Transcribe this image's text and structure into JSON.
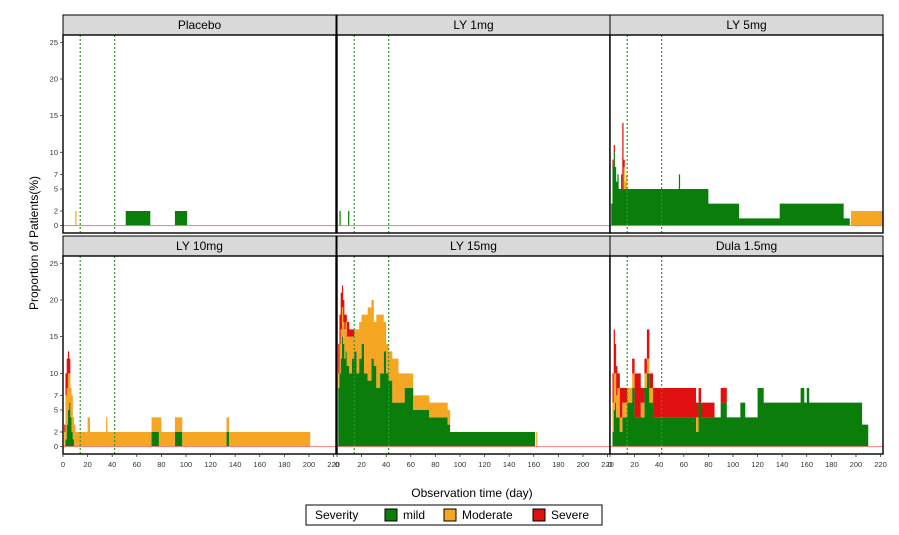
{
  "chart_data": {
    "type": "area",
    "subtype": "stacked step-area small multiples (facets)",
    "xlabel": "Observation time (day)",
    "ylabel": "Proportion of Patients(%)",
    "xlim": [
      0,
      222
    ],
    "ylim": [
      -1,
      26
    ],
    "x_ticks": [
      0,
      20,
      40,
      60,
      80,
      100,
      120,
      140,
      160,
      180,
      200,
      220
    ],
    "x_tick_labels": [
      "0",
      "20",
      "40",
      "60",
      "80",
      "100",
      "120",
      "140",
      "160",
      "180",
      "200",
      "220"
    ],
    "y_ticks": [
      0,
      2,
      5,
      7,
      10,
      15,
      20,
      25
    ],
    "y_tick_labels": [
      "0",
      "2",
      "5",
      "7",
      "10",
      "15",
      "20",
      "25"
    ],
    "reference_lines_x": [
      14,
      42
    ],
    "reference_line_y": 0,
    "layout": {
      "rows": 2,
      "cols": 3
    },
    "legend": {
      "title": "Severity",
      "position": "bottom",
      "items": [
        {
          "key": "mild",
          "label": "mild",
          "color": "#0b7d0b"
        },
        {
          "key": "moderate",
          "label": "Moderate",
          "color": "#f5a623"
        },
        {
          "key": "severe",
          "label": "Severe",
          "color": "#e01010"
        }
      ]
    },
    "colors": {
      "mild": "#0b7d0b",
      "moderate": "#f5a623",
      "severe": "#e01010",
      "strip_bg": "#d9d9d9",
      "ref_vline": "#2e9a2e",
      "ref_hline": "#e88080"
    },
    "panels": [
      {
        "title": "Placebo",
        "x": [
          0,
          9,
          10,
          11,
          12,
          50,
          51,
          70,
          71,
          90,
          91,
          100,
          101,
          222
        ],
        "mild": [
          0,
          0,
          0,
          0,
          0,
          0,
          2,
          2,
          0,
          0,
          2,
          2,
          0,
          0
        ],
        "moderate": [
          0,
          0,
          2,
          0,
          0,
          0,
          0,
          0,
          0,
          0,
          0,
          0,
          0,
          0
        ],
        "severe": [
          0,
          0,
          0,
          0,
          0,
          0,
          0,
          0,
          0,
          0,
          0,
          0,
          0,
          0
        ]
      },
      {
        "title": "LY 1mg",
        "x": [
          0,
          1,
          2,
          3,
          4,
          8,
          9,
          10,
          11,
          222
        ],
        "mild": [
          0,
          0,
          2,
          0,
          0,
          0,
          2,
          0,
          0,
          0
        ],
        "moderate": [
          0,
          0,
          0,
          0,
          0,
          0,
          0,
          0,
          0,
          0
        ],
        "severe": [
          0,
          0,
          0,
          0,
          0,
          0,
          0,
          0,
          0,
          0
        ]
      },
      {
        "title": "LY 5mg",
        "x": [
          0,
          1,
          2,
          3,
          4,
          5,
          6,
          7,
          8,
          9,
          10,
          11,
          12,
          13,
          14,
          15,
          16,
          55,
          56,
          57,
          58,
          80,
          81,
          105,
          106,
          138,
          139,
          190,
          191,
          195,
          196,
          222
        ],
        "mild": [
          0,
          3,
          8,
          10,
          8,
          6,
          7,
          5,
          5,
          7,
          5,
          5,
          5,
          5,
          5,
          5,
          5,
          5,
          7,
          5,
          5,
          3,
          3,
          1,
          1,
          3,
          3,
          1,
          1,
          0,
          0,
          0
        ],
        "moderate": [
          0,
          0,
          0,
          0,
          0,
          0,
          0,
          0,
          0,
          0,
          0,
          3,
          1,
          2,
          0,
          0,
          0,
          0,
          0,
          0,
          0,
          0,
          0,
          0,
          0,
          0,
          0,
          0,
          0,
          0,
          2,
          0
        ],
        "severe": [
          0,
          0,
          1,
          1,
          0,
          0,
          0,
          0,
          0,
          0,
          9,
          1,
          0,
          0,
          0,
          0,
          0,
          0,
          0,
          0,
          0,
          0,
          0,
          0,
          0,
          0,
          0,
          0,
          0,
          0,
          0,
          0
        ]
      },
      {
        "title": "LY 10mg",
        "x": [
          0,
          1,
          2,
          3,
          4,
          5,
          6,
          7,
          8,
          9,
          10,
          14,
          15,
          16,
          17,
          20,
          22,
          26,
          27,
          35,
          36,
          40,
          41,
          65,
          66,
          72,
          73,
          78,
          80,
          81,
          90,
          91,
          97,
          98,
          132,
          133,
          134,
          135,
          136,
          200,
          201,
          222
        ],
        "mild": [
          0,
          0,
          1,
          3,
          5,
          6,
          4,
          2,
          1,
          0,
          0,
          0,
          0,
          0,
          0,
          0,
          0,
          0,
          0,
          0,
          0,
          0,
          0,
          0,
          0,
          2,
          2,
          0,
          0,
          0,
          0,
          2,
          0,
          0,
          0,
          2,
          2,
          0,
          0,
          0,
          0,
          0
        ],
        "moderate": [
          0,
          2,
          6,
          5,
          5,
          4,
          4,
          5,
          3,
          3,
          2,
          2,
          2,
          2,
          2,
          4,
          2,
          2,
          2,
          4,
          2,
          2,
          2,
          2,
          2,
          2,
          2,
          4,
          2,
          2,
          2,
          2,
          2,
          2,
          2,
          2,
          2,
          2,
          2,
          2,
          0,
          0
        ],
        "severe": [
          0,
          1,
          3,
          4,
          3,
          2,
          0,
          0,
          0,
          0,
          0,
          0,
          0,
          0,
          0,
          0,
          0,
          0,
          0,
          0,
          0,
          0,
          0,
          0,
          0,
          0,
          0,
          0,
          0,
          0,
          0,
          0,
          0,
          0,
          0,
          0,
          0,
          0,
          0,
          0,
          0,
          0
        ]
      },
      {
        "title": "LY 15mg",
        "x": [
          0,
          1,
          2,
          3,
          4,
          5,
          6,
          7,
          8,
          10,
          12,
          14,
          16,
          18,
          20,
          22,
          25,
          28,
          30,
          32,
          35,
          38,
          40,
          42,
          45,
          50,
          55,
          60,
          62,
          65,
          70,
          75,
          80,
          85,
          88,
          90,
          92,
          95,
          100,
          160,
          161,
          162,
          163,
          222
        ],
        "mild": [
          0,
          8,
          10,
          12,
          15,
          14,
          12,
          13,
          11,
          10,
          12,
          13,
          10,
          12,
          14,
          10,
          9,
          12,
          11,
          8,
          10,
          13,
          10,
          9,
          6,
          6,
          8,
          8,
          5,
          5,
          5,
          4,
          4,
          4,
          4,
          3,
          2,
          2,
          2,
          2,
          0,
          0,
          0,
          0
        ],
        "moderate": [
          0,
          2,
          4,
          4,
          4,
          3,
          4,
          4,
          4,
          5,
          3,
          3,
          6,
          5,
          4,
          8,
          10,
          8,
          6,
          10,
          8,
          4,
          4,
          4,
          6,
          4,
          2,
          2,
          2,
          2,
          2,
          2,
          2,
          2,
          2,
          2,
          0,
          0,
          0,
          0,
          0,
          2,
          0,
          0
        ],
        "severe": [
          0,
          4,
          4,
          5,
          3,
          3,
          2,
          1,
          2,
          1,
          1,
          0,
          0,
          0,
          0,
          0,
          0,
          0,
          0,
          0,
          0,
          0,
          0,
          0,
          0,
          0,
          0,
          0,
          0,
          0,
          0,
          0,
          0,
          0,
          0,
          0,
          0,
          0,
          0,
          0,
          0,
          0,
          0,
          0
        ]
      },
      {
        "title": "Dula 1.5mg",
        "x": [
          0,
          2,
          3,
          4,
          5,
          6,
          8,
          10,
          14,
          18,
          20,
          25,
          28,
          30,
          32,
          35,
          40,
          45,
          50,
          60,
          70,
          72,
          74,
          80,
          85,
          90,
          95,
          100,
          104,
          106,
          110,
          118,
          120,
          125,
          130,
          140,
          150,
          155,
          158,
          160,
          162,
          165,
          170,
          180,
          190,
          200,
          205,
          210,
          211,
          222
        ],
        "mild": [
          0,
          2,
          5,
          6,
          4,
          4,
          2,
          4,
          6,
          8,
          4,
          4,
          8,
          10,
          6,
          4,
          4,
          4,
          4,
          4,
          2,
          6,
          4,
          4,
          4,
          6,
          4,
          4,
          4,
          6,
          4,
          4,
          8,
          6,
          6,
          6,
          6,
          8,
          6,
          8,
          6,
          6,
          6,
          6,
          6,
          6,
          3,
          0,
          0,
          0
        ],
        "moderate": [
          0,
          4,
          5,
          4,
          3,
          4,
          2,
          2,
          2,
          2,
          0,
          2,
          2,
          2,
          2,
          0,
          0,
          0,
          0,
          0,
          2,
          0,
          0,
          0,
          0,
          0,
          0,
          0,
          0,
          0,
          0,
          0,
          0,
          0,
          0,
          0,
          0,
          0,
          0,
          0,
          0,
          0,
          0,
          0,
          0,
          0,
          0,
          0,
          0,
          0
        ],
        "severe": [
          0,
          4,
          6,
          4,
          4,
          2,
          4,
          2,
          0,
          2,
          6,
          2,
          2,
          4,
          2,
          4,
          4,
          4,
          4,
          4,
          2,
          2,
          2,
          2,
          0,
          2,
          0,
          0,
          0,
          0,
          0,
          0,
          0,
          0,
          0,
          0,
          0,
          0,
          0,
          0,
          0,
          0,
          0,
          0,
          0,
          0,
          0,
          0,
          0,
          0
        ]
      }
    ]
  }
}
